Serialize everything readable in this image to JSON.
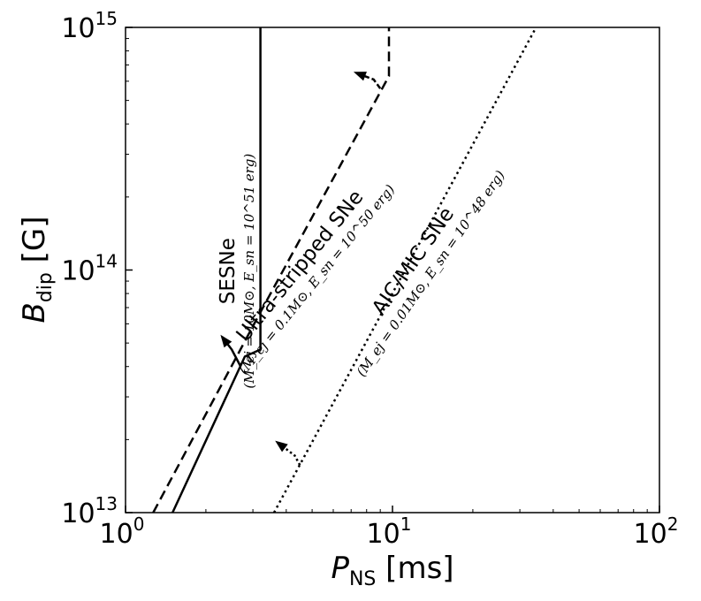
{
  "chart_data": {
    "type": "line",
    "xscale": "log",
    "yscale": "log",
    "xlim": [
      1,
      100
    ],
    "ylim": [
      10000000000000.0,
      1000000000000000.0
    ],
    "x_ticks": [
      {
        "value": 1,
        "mantissa": "10",
        "exp": "0"
      },
      {
        "value": 10,
        "mantissa": "10",
        "exp": "1"
      },
      {
        "value": 100,
        "mantissa": "10",
        "exp": "2"
      }
    ],
    "y_ticks": [
      {
        "value": 10000000000000.0,
        "mantissa": "10",
        "exp": "13"
      },
      {
        "value": 100000000000000.0,
        "mantissa": "10",
        "exp": "14"
      },
      {
        "value": 1000000000000000.0,
        "mantissa": "10",
        "exp": "15"
      }
    ],
    "xlabel": {
      "base": "P",
      "sub": "NS",
      "unit": " [ms]"
    },
    "ylabel": {
      "base": "B",
      "sub": "dip",
      "unit": " [G]"
    },
    "series": [
      {
        "name": "SESNe",
        "style": "solid",
        "color": "#000000",
        "x": [
          1.5,
          2.8,
          3.2,
          3.2
        ],
        "y": [
          10000000000000.0,
          44000000000000.0,
          47000000000000.0,
          1000000000000000.0
        ],
        "arrow": {
          "from": [
            2.7,
            40000000000000.0
          ],
          "mid": [
            2.5,
            47000000000000.0
          ],
          "tip": [
            2.3,
            53000000000000.0
          ]
        }
      },
      {
        "name": "Ultra-stripped SNe",
        "style": "dashed",
        "color": "#000000",
        "x": [
          1.27,
          3.2,
          9.7,
          9.7
        ],
        "y": [
          10000000000000.0,
          67000000000000.0,
          630000000000000.0,
          1000000000000000.0
        ],
        "arrow": {
          "from": [
            9.0,
            560000000000000.0
          ],
          "mid": [
            8.5,
            610000000000000.0
          ],
          "tip": [
            7.3,
            650000000000000.0
          ]
        }
      },
      {
        "name": "AIC/MIC SNe",
        "style": "dotted",
        "color": "#000000",
        "x": [
          3.6,
          34.5
        ],
        "y": [
          10000000000000.0,
          1000000000000000.0
        ],
        "arrow": {
          "from": [
            4.5,
            15700000000000.0
          ],
          "mid": [
            4.3,
            17200000000000.0
          ],
          "tip": [
            3.7,
            19500000000000.0
          ]
        }
      }
    ],
    "annotations": [
      {
        "name": "SESNe",
        "line1": "SESNe",
        "line2": "(M_ej = 10M⊙, E_sn = 10^51 erg)",
        "pos": [
          2.55,
          99000000000000.0
        ],
        "rotate": -90
      },
      {
        "name": "Ultra-stripped SNe",
        "line1": "Ultra-stripped SNe",
        "line2": "(M_ej = 0.1M⊙, E_sn = 10^50 erg)",
        "pos": [
          4.7,
          100000000000000.0
        ],
        "rotate": -51
      },
      {
        "name": "AIC/MIC SNe",
        "line1": "AIC/MIC SNe",
        "line2": "(M_ej = 0.01M⊙, E_sn = 10^48 erg)",
        "pos": [
          12.5,
          105000000000000.0
        ],
        "rotate": -55
      }
    ]
  }
}
